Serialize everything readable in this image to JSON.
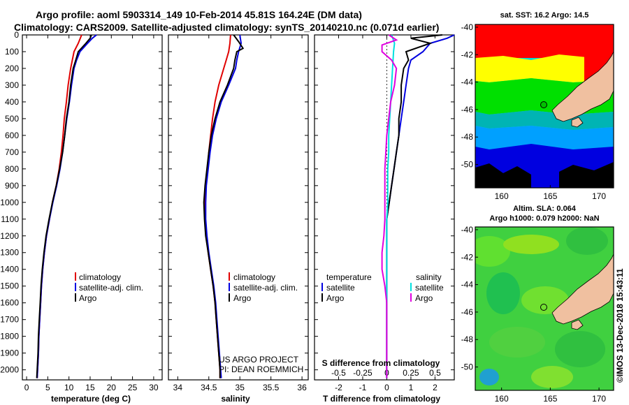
{
  "header": {
    "title_line1": "Argo profile: aoml 5903314_149 10-Feb-2014 45.81S 164.24E (DM data)",
    "title_line2": "Climatology: CARS2009. Satellite-adjusted climatology: synTS_20140210.nc (0.071d earlier)"
  },
  "colors": {
    "climatology": "#e00000",
    "satellite": "#0000e0",
    "argo": "#000000",
    "satellite_s": "#00e0e0",
    "argo_s": "#e000e0"
  },
  "depth_axis": {
    "ticks": [
      0,
      100,
      200,
      300,
      400,
      500,
      600,
      700,
      800,
      900,
      1000,
      1100,
      1200,
      1300,
      1400,
      1500,
      1600,
      1700,
      1800,
      1900,
      2000
    ],
    "ylim": [
      0,
      2060
    ]
  },
  "credit": {
    "line1": "US ARGO PROJECT",
    "line2": "PI: DEAN ROEMMICH"
  },
  "legend": {
    "climatology": "climatology",
    "satellite_adj": "satellite-adj. clim.",
    "argo": "Argo",
    "temperature": "temperature",
    "salinity": "salinity",
    "satellite": "satellite"
  },
  "chart_data": [
    {
      "type": "line",
      "xlabel": "temperature (deg C)",
      "ylabel": "",
      "xlim": [
        -1,
        32
      ],
      "xticks": [
        0,
        5,
        10,
        15,
        20,
        25,
        30
      ],
      "series": [
        {
          "name": "climatology",
          "depth": [
            0,
            50,
            100,
            150,
            200,
            300,
            400,
            500,
            600,
            700,
            800,
            900,
            1000,
            1100,
            1200,
            1300,
            1400,
            1500,
            1600,
            1700,
            1800,
            1900,
            2000,
            2050
          ],
          "values": [
            13.0,
            12.2,
            11.2,
            10.8,
            10.4,
            9.8,
            9.4,
            8.9,
            8.6,
            8.2,
            7.7,
            7.0,
            6.1,
            5.4,
            4.7,
            4.2,
            3.8,
            3.5,
            3.3,
            3.1,
            2.9,
            2.8,
            2.6,
            2.5
          ]
        },
        {
          "name": "satellite-adj. clim.",
          "depth": [
            0,
            20,
            50,
            100,
            150,
            200,
            300,
            400,
            500,
            600,
            700,
            800,
            900,
            1000,
            1100,
            1200,
            1300,
            1400,
            1500,
            1600,
            1700,
            1800,
            1900,
            2000,
            2050
          ],
          "values": [
            16.5,
            15.5,
            14.4,
            12.6,
            11.8,
            11.2,
            10.6,
            10.1,
            9.5,
            9.0,
            8.5,
            7.9,
            7.1,
            6.2,
            5.4,
            4.7,
            4.2,
            3.8,
            3.5,
            3.3,
            3.1,
            2.9,
            2.8,
            2.6,
            2.5
          ]
        },
        {
          "name": "Argo",
          "depth": [
            0,
            20,
            50,
            100,
            150,
            200,
            300,
            400,
            500,
            600,
            700,
            800,
            900,
            1000,
            1100,
            1200,
            1300,
            1400,
            1500,
            1600,
            1700,
            1800,
            1900,
            2000,
            2050
          ],
          "values": [
            15.3,
            15.0,
            14.0,
            12.2,
            11.6,
            11.0,
            10.4,
            10.0,
            9.4,
            9.0,
            8.5,
            7.8,
            7.0,
            6.1,
            5.3,
            4.6,
            4.1,
            3.7,
            3.4,
            3.2,
            3.0,
            2.8,
            2.7,
            2.5,
            2.4
          ]
        }
      ]
    },
    {
      "type": "line",
      "xlabel": "salinity",
      "ylabel": "",
      "xlim": [
        33.85,
        36.1
      ],
      "xticks": [
        34,
        34.5,
        35,
        35.5,
        36
      ],
      "series": [
        {
          "name": "climatology",
          "depth": [
            0,
            50,
            100,
            150,
            200,
            300,
            400,
            500,
            600,
            700,
            800,
            900,
            1000,
            1100,
            1200,
            1300,
            1400,
            1500,
            1600,
            1700,
            1800,
            1900,
            2000,
            2050
          ],
          "values": [
            34.85,
            34.84,
            34.82,
            34.78,
            34.74,
            34.66,
            34.6,
            34.56,
            34.53,
            34.5,
            34.48,
            34.45,
            34.44,
            34.44,
            34.46,
            34.49,
            34.53,
            34.57,
            34.6,
            34.62,
            34.64,
            34.66,
            34.68,
            34.68
          ]
        },
        {
          "name": "satellite-adj. clim.",
          "depth": [
            0,
            50,
            100,
            150,
            200,
            300,
            400,
            500,
            600,
            700,
            800,
            900,
            1000,
            1100,
            1200,
            1300,
            1400,
            1500,
            1600,
            1700,
            1800,
            1900,
            2000,
            2050
          ],
          "values": [
            35.0,
            35.02,
            34.98,
            34.95,
            34.93,
            34.82,
            34.7,
            34.62,
            34.56,
            34.52,
            34.49,
            34.46,
            34.45,
            34.45,
            34.47,
            34.5,
            34.54,
            34.58,
            34.61,
            34.63,
            34.65,
            34.67,
            34.69,
            34.7
          ]
        },
        {
          "name": "Argo",
          "depth": [
            0,
            40,
            80,
            100,
            150,
            200,
            300,
            400,
            500,
            600,
            700,
            800,
            900,
            1000,
            1100,
            1200,
            1300,
            1400,
            1500,
            1600,
            1700,
            1800,
            1900,
            2000,
            2050
          ],
          "values": [
            34.9,
            34.98,
            35.05,
            34.95,
            34.92,
            34.9,
            34.8,
            34.68,
            34.6,
            34.54,
            34.5,
            34.47,
            34.44,
            34.42,
            34.43,
            34.45,
            34.49,
            34.53,
            34.57,
            34.6,
            34.62,
            34.64,
            34.66,
            34.68,
            34.68
          ]
        }
      ]
    },
    {
      "type": "line",
      "xlabel": "T difference from climatology",
      "ylabel": "",
      "xlim": [
        -3,
        2.8
      ],
      "xticks": [
        -2,
        -1,
        0,
        1,
        2
      ],
      "secondary_xlabel": "S difference from climatology",
      "secondary_xticks": [
        "-0.5",
        "-0.25",
        "0",
        "0.25",
        "0.5"
      ],
      "series": [
        {
          "name": "temperature satellite",
          "depth": [
            0,
            20,
            50,
            100,
            150,
            200,
            300,
            400,
            500,
            600,
            700,
            800,
            900,
            1000,
            1100,
            1200,
            1300,
            1400,
            1500,
            1600,
            1700,
            1800,
            1900,
            2000,
            2050
          ],
          "values": [
            3.4,
            2.5,
            1.8,
            1.5,
            1.0,
            0.9,
            0.8,
            0.7,
            0.6,
            0.5,
            0.4,
            0.3,
            0.2,
            0.1,
            0.0,
            0.0,
            0.0,
            0.0,
            0.0,
            0.0,
            0.0,
            0.0,
            0.0,
            0.0,
            0.0
          ]
        },
        {
          "name": "temperature Argo",
          "depth": [
            0,
            20,
            50,
            100,
            150,
            200,
            300,
            400,
            500,
            600,
            700,
            800,
            900,
            1000,
            1100,
            1200,
            1300,
            1400,
            1500,
            1600,
            1700,
            1800,
            1900,
            2000,
            2050
          ],
          "values": [
            2.3,
            1.0,
            1.8,
            0.8,
            0.9,
            0.7,
            0.6,
            0.6,
            0.5,
            0.5,
            0.4,
            0.3,
            0.2,
            0.1,
            0.0,
            0.0,
            0.0,
            0.0,
            0.0,
            0.0,
            0.0,
            0.0,
            0.0,
            0.0,
            0.0
          ]
        },
        {
          "name": "salinity satellite",
          "depth": [
            0,
            50,
            100,
            200,
            300,
            400,
            500,
            600,
            700,
            800,
            900,
            1000,
            1100,
            1200,
            1300,
            1400,
            1500,
            1600,
            1700,
            1800,
            1900,
            2000,
            2050
          ],
          "values": [
            0.05,
            0.08,
            0.07,
            0.06,
            0.05,
            0.04,
            0.03,
            0.02,
            0.02,
            0.01,
            0.01,
            0.01,
            0.0,
            0.0,
            0.0,
            0.0,
            0.0,
            0.0,
            0.0,
            0.0,
            0.0,
            0.0,
            0.0
          ]
        },
        {
          "name": "salinity Argo",
          "depth": [
            0,
            30,
            60,
            100,
            150,
            200,
            300,
            400,
            500,
            600,
            700,
            800,
            900,
            1000,
            1100,
            1200,
            1300,
            1400,
            1500,
            1600,
            1700,
            1800,
            1900,
            2000,
            2050
          ],
          "values": [
            0.02,
            0.1,
            -0.05,
            -0.05,
            0.05,
            0.1,
            0.08,
            0.04,
            0.02,
            0.0,
            -0.01,
            -0.02,
            -0.02,
            -0.02,
            -0.02,
            -0.03,
            -0.05,
            -0.05,
            -0.02,
            0.0,
            0.0,
            0.0,
            0.0,
            0.0,
            0.0
          ]
        }
      ]
    },
    {
      "type": "heatmap",
      "title": "sat. SST: 16.2  Argo: 14.5",
      "xticks": [
        160,
        165,
        170
      ],
      "yticks": [
        -40,
        -42,
        -44,
        -46,
        -48,
        -50
      ],
      "xlim": [
        157.3,
        171.5
      ],
      "ylim": [
        -51.7,
        -39.8
      ],
      "argo_position": [
        164.24,
        -45.81
      ]
    },
    {
      "type": "heatmap",
      "title_line1": "Altim. SLA: 0.064",
      "title_line2": "Argo h1000: 0.079 h2000: NaN",
      "xticks": [
        160,
        165,
        170
      ],
      "yticks": [
        -40,
        -42,
        -44,
        -46,
        -48,
        -50
      ],
      "xlim": [
        157.3,
        171.5
      ],
      "ylim": [
        -51.7,
        -39.8
      ],
      "argo_position": [
        164.24,
        -45.81
      ],
      "credit": "©IMOS 13-Dec-2018 15:43:11"
    }
  ]
}
